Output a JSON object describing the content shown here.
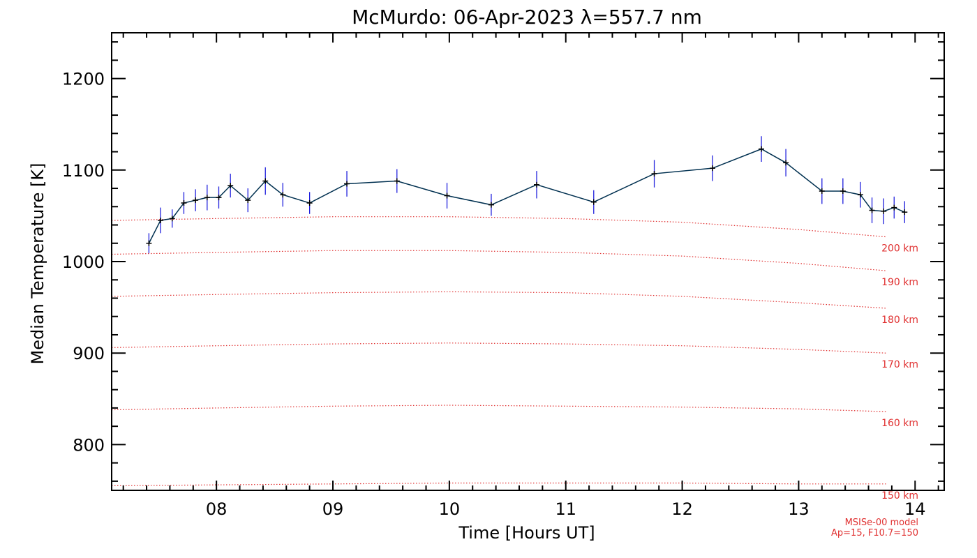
{
  "chart_data": {
    "type": "line",
    "title": "McMurdo: 06-Apr-2023 λ=557.7 nm",
    "xlabel": "Time [Hours UT]",
    "ylabel": "Median Temperature [K]",
    "xlim": [
      7.1,
      14.25
    ],
    "ylim": [
      750,
      1250
    ],
    "x_ticks": [
      8,
      9,
      10,
      11,
      12,
      13,
      14
    ],
    "x_tick_labels": [
      "08",
      "09",
      "10",
      "11",
      "12",
      "13",
      "14"
    ],
    "y_ticks": [
      800,
      900,
      1000,
      1100,
      1200
    ],
    "y_tick_labels": [
      "800",
      "900",
      "1000",
      "1100",
      "1200"
    ],
    "grid": false,
    "series": [
      {
        "color": "#003050",
        "error_color": "#2020dd",
        "x": [
          7.42,
          7.52,
          7.62,
          7.72,
          7.82,
          7.92,
          8.02,
          8.12,
          8.27,
          8.42,
          8.57,
          8.8,
          9.12,
          9.55,
          9.98,
          10.36,
          10.75,
          11.24,
          11.76,
          12.26,
          12.68,
          12.89,
          13.2,
          13.38,
          13.53,
          13.63,
          13.73,
          13.82,
          13.91
        ],
        "y": [
          1020,
          1045,
          1047,
          1064,
          1067,
          1070,
          1070,
          1083,
          1067,
          1088,
          1073,
          1064,
          1085,
          1088,
          1072,
          1062,
          1084,
          1065,
          1096,
          1102,
          1123,
          1108,
          1077,
          1077,
          1073,
          1056,
          1055,
          1059,
          1054
        ],
        "err": [
          11,
          14,
          10,
          12,
          12,
          14,
          12,
          13,
          13,
          15,
          13,
          12,
          14,
          13,
          14,
          12,
          15,
          13,
          15,
          14,
          14,
          15,
          14,
          14,
          14,
          14,
          14,
          12,
          12
        ]
      }
    ],
    "model_lines": [
      {
        "label": "200 km",
        "x": [
          7.1,
          8,
          9,
          10,
          11,
          12,
          13,
          13.75
        ],
        "y": [
          1045,
          1047,
          1049,
          1049,
          1047,
          1043,
          1035,
          1027
        ]
      },
      {
        "label": "190 km",
        "x": [
          7.1,
          8,
          9,
          10,
          11,
          12,
          13,
          13.75
        ],
        "y": [
          1008,
          1010,
          1012,
          1012,
          1010,
          1006,
          998,
          990
        ]
      },
      {
        "label": "180 km",
        "x": [
          7.1,
          8,
          9,
          10,
          11,
          12,
          13,
          13.75
        ],
        "y": [
          962,
          964,
          966,
          967,
          966,
          962,
          955,
          949
        ]
      },
      {
        "label": "170 km",
        "x": [
          7.1,
          8,
          9,
          10,
          11,
          12,
          13,
          13.75
        ],
        "y": [
          906,
          908,
          910,
          911,
          910,
          908,
          904,
          900
        ]
      },
      {
        "label": "160 km",
        "x": [
          7.1,
          8,
          9,
          10,
          11,
          12,
          13,
          13.75
        ],
        "y": [
          838,
          840,
          842,
          843,
          842,
          841,
          839,
          836
        ]
      },
      {
        "label": "150 km",
        "x": [
          7.1,
          8,
          9,
          10,
          11,
          12,
          13,
          13.75
        ],
        "y": [
          755,
          756,
          757,
          758,
          758,
          758,
          757,
          757
        ]
      }
    ],
    "model_line_color": "#e03030",
    "notes": [
      "MSISe-00 model",
      "Ap=15, F10.7=150"
    ]
  }
}
